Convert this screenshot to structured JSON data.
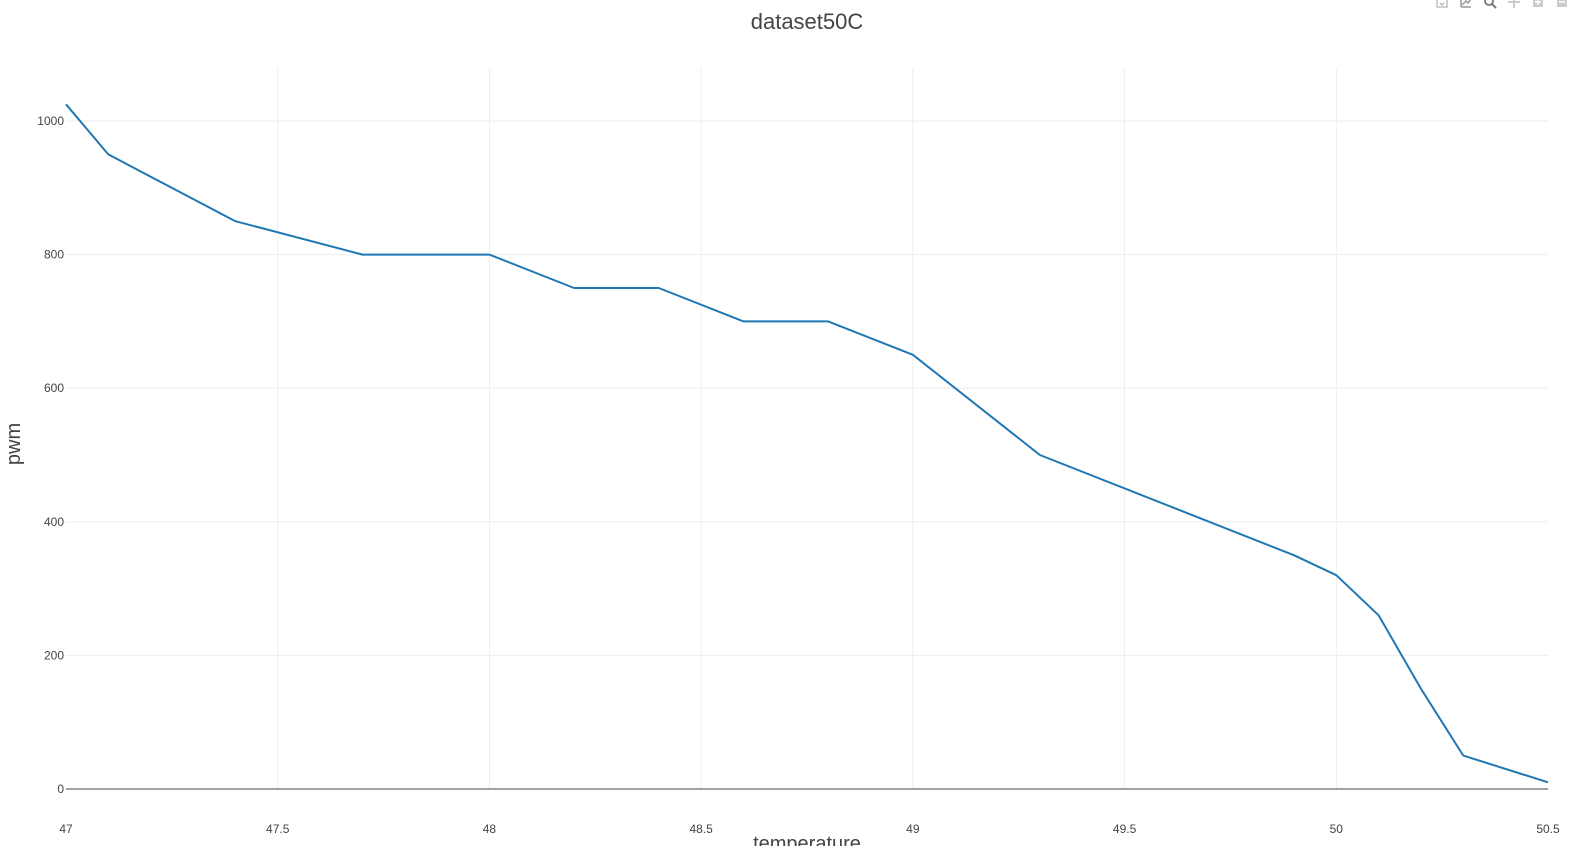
{
  "chart_data": {
    "type": "line",
    "title": "dataset50C",
    "xlabel": "temperature",
    "ylabel": "pwm",
    "xlim": [
      47,
      50.5
    ],
    "ylim": [
      0,
      1000
    ],
    "x_ticks": [
      47,
      47.5,
      48,
      48.5,
      49,
      49.5,
      50,
      50.5
    ],
    "x_tick_labels": [
      "47",
      "47.5",
      "48",
      "48.5",
      "49",
      "49.5",
      "50",
      "50.5"
    ],
    "y_ticks": [
      0,
      200,
      400,
      600,
      800,
      1000
    ],
    "y_tick_labels": [
      "0",
      "200",
      "400",
      "600",
      "800",
      "1000"
    ],
    "grid": true,
    "series": [
      {
        "color": "#1f77b4",
        "x": [
          47,
          47.1,
          47.4,
          47.7,
          48,
          48.2,
          48.4,
          48.6,
          48.8,
          49,
          49.3,
          49.9,
          50,
          50.1,
          50.2,
          50.3,
          50.5
        ],
        "y": [
          1025,
          950,
          850,
          800,
          800,
          750,
          750,
          700,
          700,
          650,
          500,
          350,
          320,
          260,
          150,
          50,
          10
        ]
      }
    ]
  },
  "modebar": {
    "buttons": [
      "download-plot-icon",
      "edit-chart-icon",
      "zoom-icon",
      "pan-icon",
      "zoom-in-icon",
      "zoom-out-icon"
    ]
  }
}
